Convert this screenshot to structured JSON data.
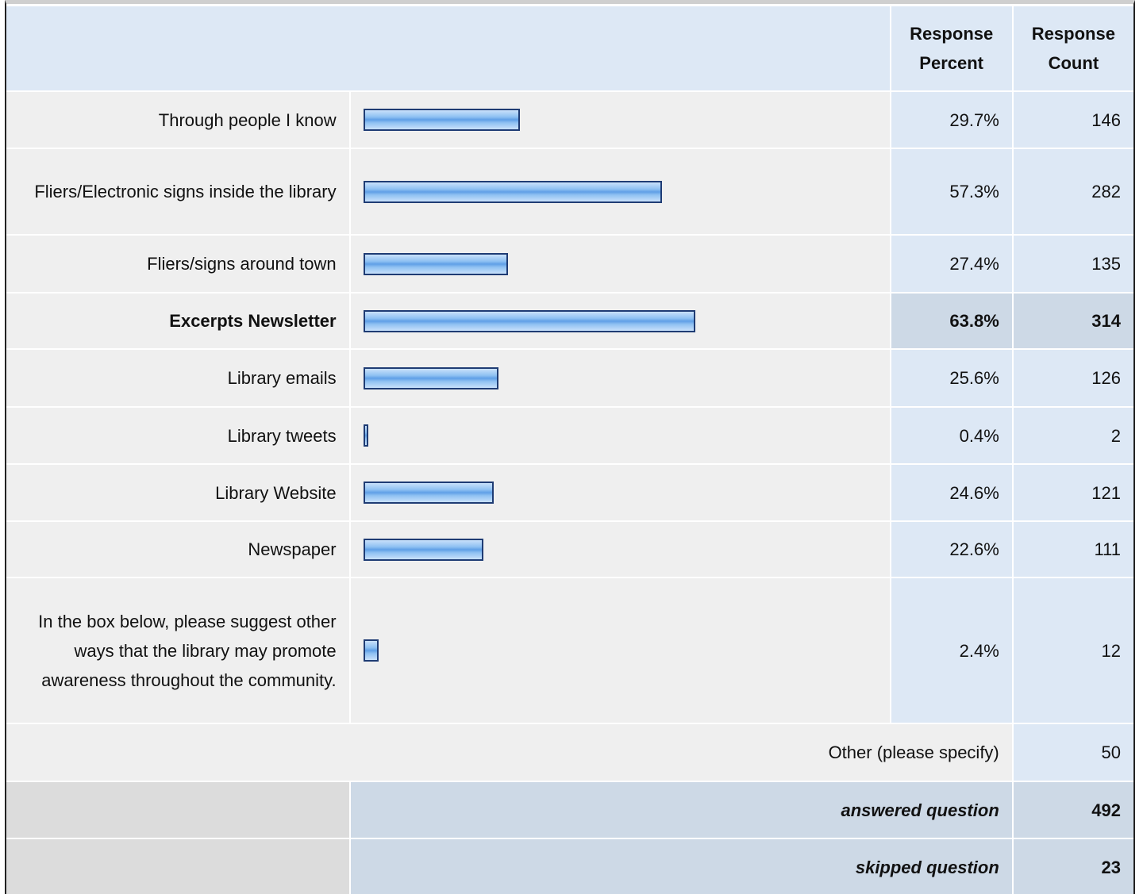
{
  "table": {
    "header": [
      "Response Percent",
      "Response Count"
    ],
    "rows": [
      {
        "label": "Through people I know",
        "percent": 29.7,
        "percent_label": "29.7%",
        "count": 146
      },
      {
        "label": "Fliers/Electronic signs inside the library",
        "percent": 57.3,
        "percent_label": "57.3%",
        "count": 282
      },
      {
        "label": "Fliers/signs around town",
        "percent": 27.4,
        "percent_label": "27.4%",
        "count": 135
      },
      {
        "label": "Excerpts Newsletter",
        "percent": 63.8,
        "percent_label": "63.8%",
        "count": 314,
        "highlight": true
      },
      {
        "label": "Library emails",
        "percent": 25.6,
        "percent_label": "25.6%",
        "count": 126
      },
      {
        "label": "Library tweets",
        "percent": 0.4,
        "percent_label": "0.4%",
        "count": 2
      },
      {
        "label": "Library Website",
        "percent": 24.6,
        "percent_label": "24.6%",
        "count": 121
      },
      {
        "label": "Newspaper",
        "percent": 22.6,
        "percent_label": "22.6%",
        "count": 111
      },
      {
        "label": "In the box below, please suggest other ways that the library may promote awareness throughout the community.",
        "percent": 2.4,
        "percent_label": "2.4%",
        "count": 12
      }
    ],
    "other": {
      "label": "Other (please specify)",
      "count": 50
    },
    "summary": [
      {
        "label": "answered question",
        "count": 492
      },
      {
        "label": "skipped question",
        "count": 23
      }
    ]
  }
}
